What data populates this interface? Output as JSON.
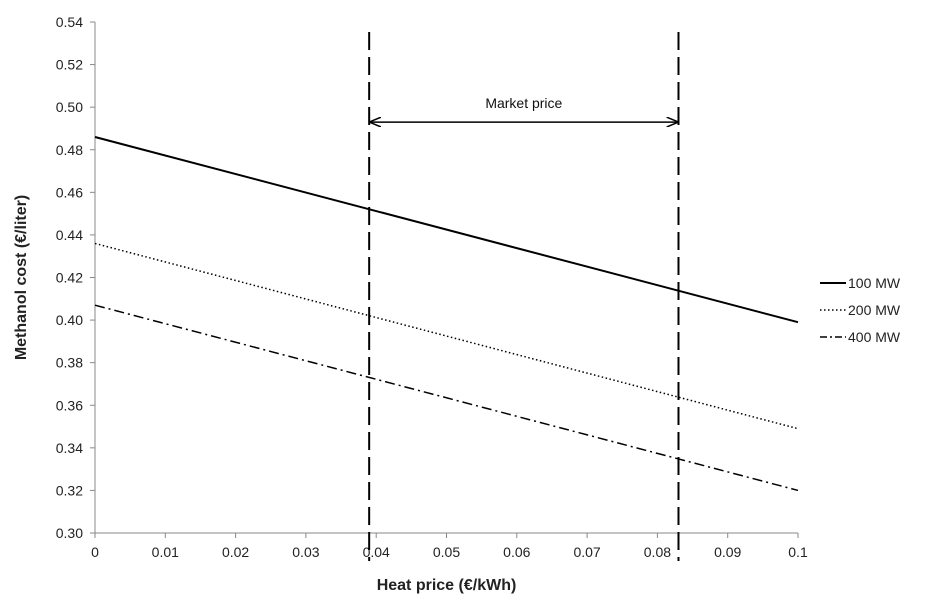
{
  "chart_data": {
    "type": "line",
    "title": "",
    "xlabel": "Heat price (€/kWh)",
    "ylabel": "Methanol cost (€/liter)",
    "xlim": [
      0,
      0.1
    ],
    "ylim": [
      0.3,
      0.54
    ],
    "x_ticks": [
      "0",
      "0.01",
      "0.02",
      "0.03",
      "0.04",
      "0.05",
      "0.06",
      "0.07",
      "0.08",
      "0.09",
      "0.1"
    ],
    "y_ticks": [
      "0.30",
      "0.32",
      "0.34",
      "0.36",
      "0.38",
      "0.40",
      "0.42",
      "0.44",
      "0.46",
      "0.48",
      "0.50",
      "0.52",
      "0.54"
    ],
    "grid": false,
    "legend": "right",
    "series": [
      {
        "name": "100 MW",
        "style": "solid",
        "x": [
          0,
          0.1
        ],
        "y": [
          0.486,
          0.399
        ]
      },
      {
        "name": "200 MW",
        "style": "dotted",
        "x": [
          0,
          0.1
        ],
        "y": [
          0.436,
          0.349
        ]
      },
      {
        "name": "400 MW",
        "style": "dashdot",
        "x": [
          0,
          0.1
        ],
        "y": [
          0.407,
          0.32
        ]
      }
    ],
    "vertical_lines": [
      {
        "x": 0.039,
        "style": "dashed"
      },
      {
        "x": 0.083,
        "style": "dashed"
      }
    ],
    "annotation": {
      "text": "Market price",
      "x_start": 0.039,
      "x_end": 0.083,
      "y": 0.493
    },
    "line_color": "#000000"
  }
}
